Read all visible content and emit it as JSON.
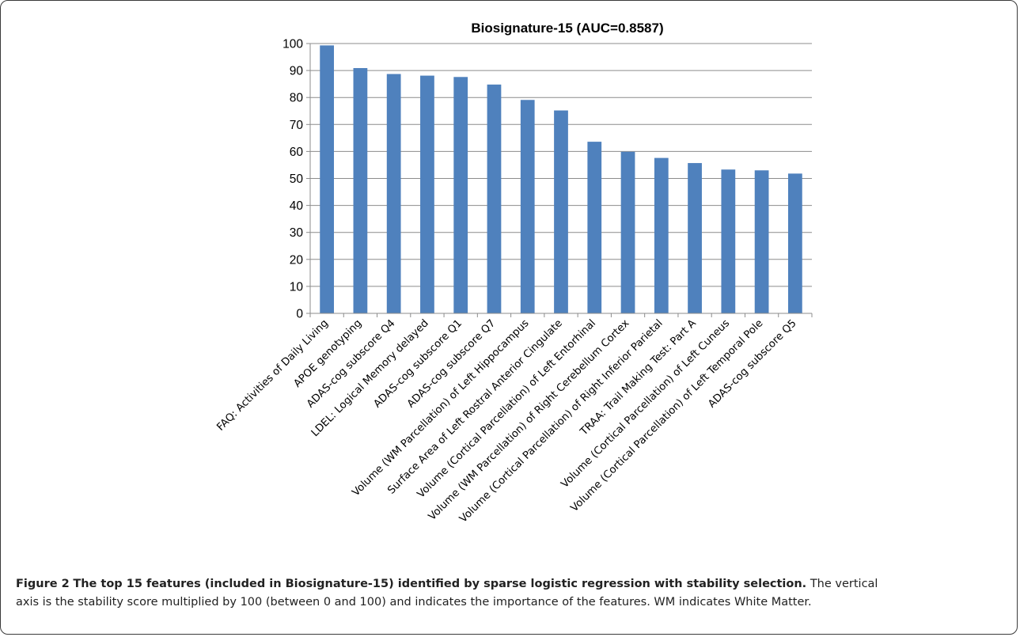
{
  "chart_data": {
    "type": "bar",
    "title": "Biosignature-15 (AUC=0.8587)",
    "xlabel": "",
    "ylabel": "",
    "ylim": [
      0,
      100
    ],
    "yticks": [
      0,
      10,
      20,
      30,
      40,
      50,
      60,
      70,
      80,
      90,
      100
    ],
    "grid": true,
    "bar_color": "#4f81bd",
    "categories": [
      "FAQ: Activities of Daily Living",
      "APOE genotyping",
      "ADAS-cog subscore Q4",
      "LDEL: Logical Memory delayed",
      "ADAS-cog subscore Q1",
      "ADAS-cog subscore Q7",
      "Volume (WM Parcellation) of Left Hippocampus",
      "Surface Area of Left Rostral Anterior Cingulate",
      "Volume (Cortical Parcellation) of Left Entorhinal",
      "Volume (WM Parcellation) of Right Cerebellum Cortex",
      "Volume (Cortical Parcellation) of Right Inferior Parietal",
      "TRAA: Trail Making Test: Part A",
      "Volume (Cortical Parcellation) of Left Cuneus",
      "Volume (Cortical Parcellation) of Left Temporal Pole",
      "ADAS-cog subscore Q5"
    ],
    "values": [
      99.3,
      90.9,
      88.7,
      88.1,
      87.6,
      84.8,
      79.1,
      75.2,
      63.6,
      59.9,
      57.6,
      55.7,
      53.3,
      53.0,
      51.8
    ]
  },
  "caption": {
    "label": "Figure 2",
    "bold_text": "The top 15 features (included in Biosignature-15) identified by sparse logistic regression with stability selection.",
    "body_line1": "The vertical",
    "body_line2": "axis is the stability score multiplied by 100 (between 0 and 100) and indicates the importance of the features. WM indicates White Matter."
  }
}
